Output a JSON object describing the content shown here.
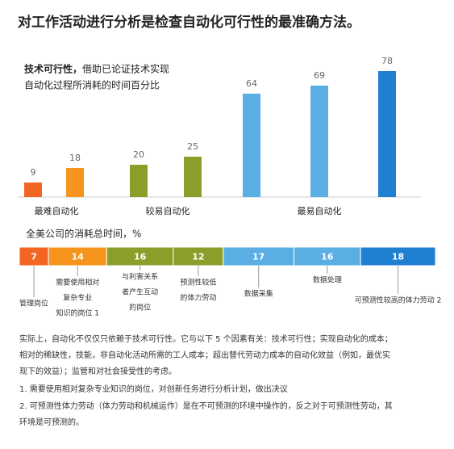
{
  "chart_data": [
    {
      "type": "bar",
      "title": "对工作活动进行分析是检查自动化可行性的最准确方法。",
      "subtitle_bold": "技术可行性，",
      "subtitle": [
        "借助已论证技术实现",
        "自动化过程所消耗的时间百分比"
      ],
      "values": [
        9,
        18,
        20,
        25,
        64,
        69,
        78
      ],
      "colors": [
        "#f26522",
        "#f7941d",
        "#8a9e2a",
        "#8a9e2a",
        "#5aaee3",
        "#5aaee3",
        "#1f7fd0"
      ],
      "groups": [
        {
          "label": "最难自动化",
          "color": "#f7941d"
        },
        {
          "label": "较易自动化",
          "color": "#8a9e2a"
        },
        {
          "label": "最易自动化",
          "color": "#3a9ad9"
        }
      ],
      "ylim": [
        0,
        80
      ]
    },
    {
      "type": "stacked-hbar",
      "title": "全美公司的消耗总时间，%",
      "values": [
        7,
        14,
        16,
        12,
        17,
        16,
        18
      ],
      "colors": [
        "#f26522",
        "#f7941d",
        "#8a9e2a",
        "#8a9e2a",
        "#5aaee3",
        "#5aaee3",
        "#1f7fd0"
      ],
      "categories": [
        [
          "管理岗位"
        ],
        [
          "需要使用相对",
          "复杂专业",
          "知识的岗位 1"
        ],
        [
          "与利害关系",
          "者产生互动",
          "的岗位"
        ],
        [
          "预测性较低",
          "的体力劳动"
        ],
        [
          "数据采集"
        ],
        [
          "数据处理"
        ],
        [
          "可预测性较高的体力劳动 2"
        ]
      ],
      "xlim": [
        0,
        100
      ]
    }
  ],
  "notes": [
    "实际上，自动化不仅仅只依赖于技术可行性。它与以下 5 个因素有关：技术可行性；实现自动化的成本；",
    "相对的稀缺性，技能，非自动化活动所需的工人成本；超出替代劳动力成本的自动化效益（例如，最优实",
    "现下的效益）；监管和对社会接受性的考虑。",
    "1. 需要使用相对复杂专业知识的岗位，对创新任务进行分析计划，做出决议",
    "2. 可预测性体力劳动（体力劳动和机械运作）是在不可预测的环境中操作的，反之对于可预测性劳动，其",
    "环境是可预测的。"
  ]
}
